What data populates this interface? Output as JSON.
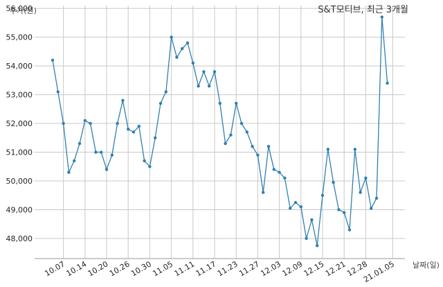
{
  "chart_data": {
    "type": "line",
    "title": "S&T모티브, 최근 3개월",
    "xlabel": "날짜(일)",
    "ylabel": "주가(원)",
    "ylim": [
      47300,
      56100
    ],
    "yticks": [
      48000,
      49000,
      50000,
      51000,
      52000,
      53000,
      54000,
      55000,
      56000
    ],
    "ytick_labels": [
      "48,000",
      "49,000",
      "50,000",
      "51,000",
      "52,000",
      "53,000",
      "54,000",
      "55,000",
      "56,000"
    ],
    "xtick_labels": [
      "10.07",
      "10.14",
      "10.20",
      "10.26",
      "10.30",
      "11.05",
      "11.11",
      "11.17",
      "11.23",
      "11.27",
      "12.03",
      "12.09",
      "12.15",
      "12.21",
      "12.28",
      "21.01.05"
    ],
    "xtick_index": [
      2,
      6,
      10,
      14,
      18,
      22,
      26,
      30,
      34,
      38,
      42,
      46,
      50,
      54,
      58,
      63
    ],
    "grid": true,
    "values": [
      54200,
      53100,
      52000,
      50300,
      50700,
      51300,
      52100,
      52000,
      51000,
      51000,
      50400,
      50900,
      52000,
      52800,
      51800,
      51700,
      51900,
      50700,
      50500,
      51500,
      52700,
      53100,
      55000,
      54300,
      54600,
      54800,
      54100,
      53300,
      53800,
      53300,
      53800,
      52700,
      51300,
      51600,
      52700,
      52000,
      51700,
      51200,
      50900,
      49600,
      51200,
      50400,
      50300,
      50100,
      49050,
      49250,
      49100,
      48000,
      48650,
      47750,
      49500,
      51100,
      49950,
      49000,
      48900,
      48300,
      51100,
      49600,
      50100,
      49050,
      49400,
      55700,
      53400
    ]
  }
}
